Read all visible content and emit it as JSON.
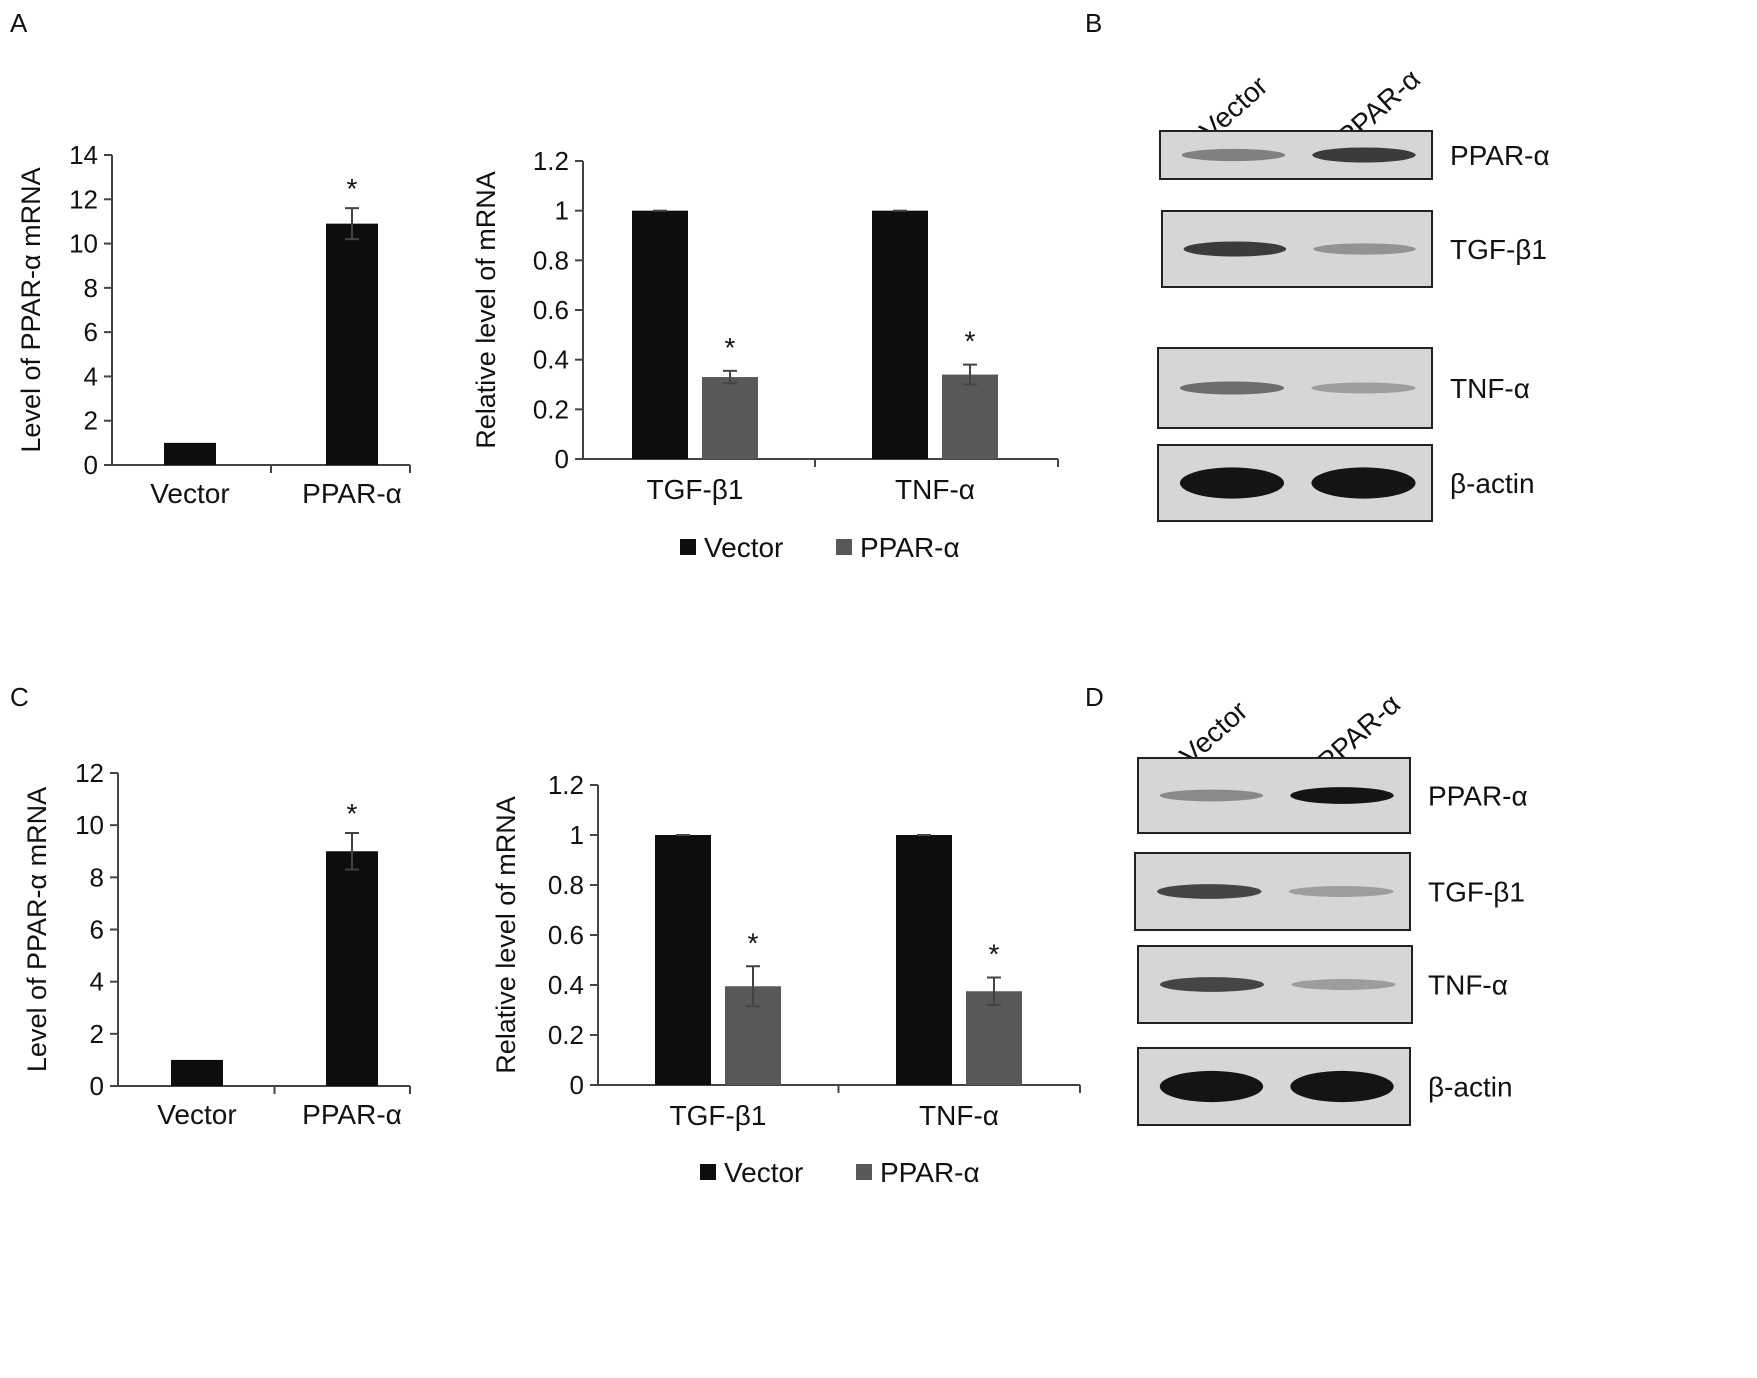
{
  "panels": {
    "A": "A",
    "B": "B",
    "C": "C",
    "D": "D"
  },
  "colors": {
    "vector": "#0d0d0d",
    "ppar": "#585858"
  },
  "chart_data": [
    {
      "id": "A1",
      "type": "bar",
      "categories": [
        "Vector",
        "PPAR-α"
      ],
      "values": [
        1,
        10.9
      ],
      "errors": [
        0,
        0.7
      ],
      "sig": [
        "",
        "*"
      ],
      "ylabel": "Level of PPAR-α mRNA",
      "ylim": [
        0,
        14
      ],
      "yticks": [
        "0",
        "2",
        "4",
        "6",
        "8",
        "10",
        "12",
        "14"
      ]
    },
    {
      "id": "A2",
      "type": "bar",
      "categories": [
        "TGF-β1",
        "TNF-α"
      ],
      "series": [
        {
          "name": "Vector",
          "values": [
            1,
            1
          ],
          "errors": [
            0,
            0
          ],
          "sig": [
            "",
            ""
          ]
        },
        {
          "name": "PPAR-α",
          "values": [
            0.33,
            0.34
          ],
          "errors": [
            0.025,
            0.04
          ],
          "sig": [
            "*",
            "*"
          ]
        }
      ],
      "ylabel": "Relative level of mRNA",
      "ylim": [
        0,
        1.2
      ],
      "yticks": [
        "0",
        "0.2",
        "0.4",
        "0.6",
        "0.8",
        "1",
        "1.2"
      ],
      "legend": "bottom"
    },
    {
      "id": "C1",
      "type": "bar",
      "categories": [
        "Vector",
        "PPAR-α"
      ],
      "values": [
        1,
        9.0
      ],
      "errors": [
        0,
        0.7
      ],
      "sig": [
        "",
        "*"
      ],
      "ylabel": "Level of PPAR-α mRNA",
      "ylim": [
        0,
        12
      ],
      "yticks": [
        "0",
        "2",
        "4",
        "6",
        "8",
        "10",
        "12"
      ]
    },
    {
      "id": "C2",
      "type": "bar",
      "categories": [
        "TGF-β1",
        "TNF-α"
      ],
      "series": [
        {
          "name": "Vector",
          "values": [
            1,
            1
          ],
          "errors": [
            0,
            0
          ],
          "sig": [
            "",
            ""
          ]
        },
        {
          "name": "PPAR-α",
          "values": [
            0.395,
            0.375
          ],
          "errors": [
            0.08,
            0.055
          ],
          "sig": [
            "*",
            "*"
          ]
        }
      ],
      "ylabel": "Relative level of mRNA",
      "ylim": [
        0,
        1.2
      ],
      "yticks": [
        "0",
        "0.2",
        "0.4",
        "0.6",
        "0.8",
        "1",
        "1.2"
      ],
      "legend": "bottom"
    }
  ],
  "blots": [
    {
      "id": "B",
      "lanes": [
        "Vector",
        "PPAR-α"
      ],
      "rows": [
        {
          "label": "PPAR-α",
          "intensity": [
            0.45,
            0.8
          ]
        },
        {
          "label": "TGF-β1",
          "intensity": [
            0.8,
            0.35
          ]
        },
        {
          "label": "TNF-α",
          "intensity": [
            0.55,
            0.3
          ]
        },
        {
          "label": "β-actin",
          "intensity": [
            1.0,
            1.0
          ]
        }
      ]
    },
    {
      "id": "D",
      "lanes": [
        "Vector",
        "PPAR-α"
      ],
      "rows": [
        {
          "label": "PPAR-α",
          "intensity": [
            0.4,
            1.0
          ]
        },
        {
          "label": "TGF-β1",
          "intensity": [
            0.75,
            0.3
          ]
        },
        {
          "label": "TNF-α",
          "intensity": [
            0.75,
            0.3
          ]
        },
        {
          "label": "β-actin",
          "intensity": [
            1.0,
            1.0
          ]
        }
      ]
    }
  ]
}
